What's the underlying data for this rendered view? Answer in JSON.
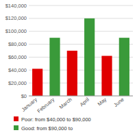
{
  "chart_data": {
    "type": "bar",
    "categories": [
      "January",
      "February",
      "March",
      "April",
      "May",
      "June"
    ],
    "series": [
      {
        "name": "Poor: from $40,000 to $90,000",
        "color": "#e00000",
        "values": [
          42000,
          null,
          70000,
          null,
          62000,
          null
        ]
      },
      {
        "name": "Good: from $90,000 to",
        "color": "#3a9a3a",
        "values": [
          null,
          90000,
          null,
          120000,
          null,
          90000
        ]
      }
    ],
    "stacked": true,
    "ylim": [
      0,
      140000
    ],
    "yticks": [
      {
        "value": 0,
        "label": "$0"
      },
      {
        "value": 20000,
        "label": "$20,000"
      },
      {
        "value": 40000,
        "label": "$40,000"
      },
      {
        "value": 60000,
        "label": "$60,000"
      },
      {
        "value": 80000,
        "label": "$80,000"
      },
      {
        "value": 100000,
        "label": "$100,000"
      },
      {
        "value": 120000,
        "label": "$120,000"
      },
      {
        "value": 140000,
        "label": "$140,000"
      }
    ],
    "grid": true,
    "legend": "bottom"
  }
}
